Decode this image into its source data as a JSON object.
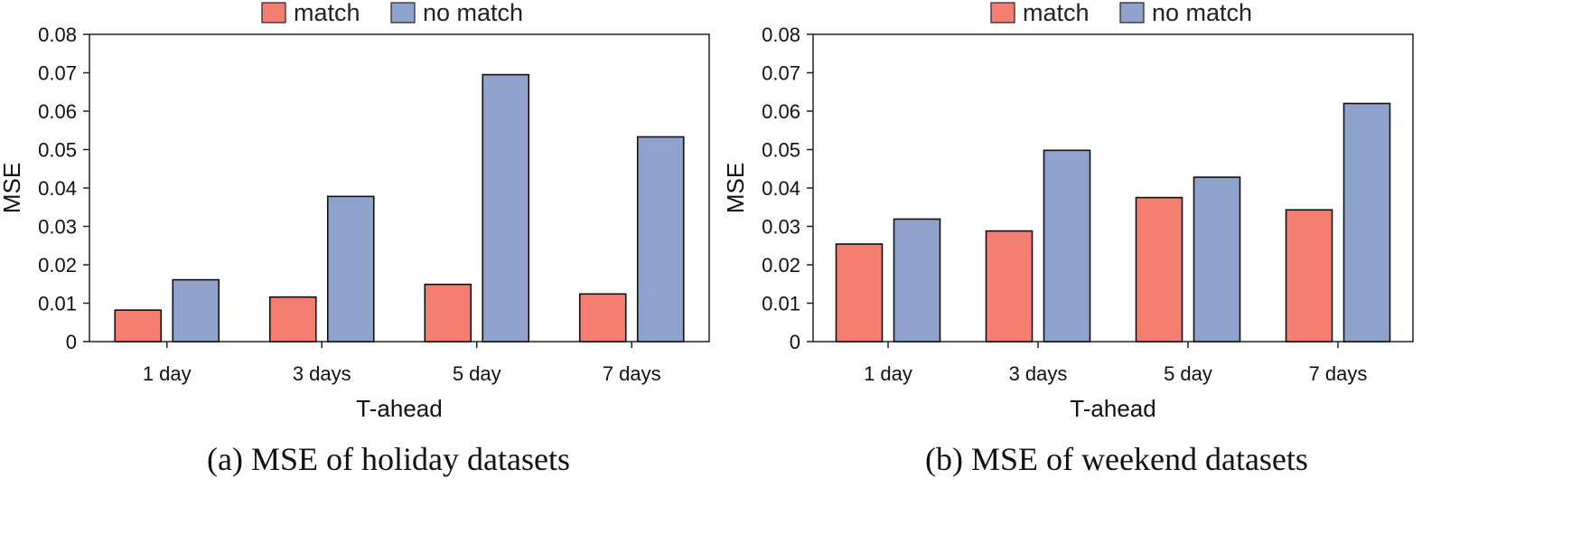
{
  "legend": {
    "items": [
      {
        "label": "match",
        "color": "#f47e71"
      },
      {
        "label": "no match",
        "color": "#8fa2cc"
      }
    ]
  },
  "chart_data": [
    {
      "type": "bar",
      "caption": "(a) MSE of holiday datasets",
      "categories": [
        "1 day",
        "3 days",
        "5 day",
        "7 days"
      ],
      "series": [
        {
          "name": "match",
          "values": [
            0.0082,
            0.0116,
            0.0149,
            0.0124
          ]
        },
        {
          "name": "no match",
          "values": [
            0.0161,
            0.0378,
            0.0695,
            0.0533
          ]
        }
      ],
      "xlabel": "T-ahead",
      "ylabel": "MSE",
      "ylim": [
        0,
        0.08
      ],
      "yticks": [
        "0",
        "0.01",
        "0.02",
        "0.03",
        "0.04",
        "0.05",
        "0.06",
        "0.07",
        "0.08"
      ],
      "legend_position": "top-center"
    },
    {
      "type": "bar",
      "caption": "(b) MSE of weekend datasets",
      "categories": [
        "1 day",
        "3 days",
        "5 day",
        "7 days"
      ],
      "series": [
        {
          "name": "match",
          "values": [
            0.0254,
            0.0288,
            0.0375,
            0.0343
          ]
        },
        {
          "name": "no match",
          "values": [
            0.0319,
            0.0498,
            0.0428,
            0.062
          ]
        }
      ],
      "xlabel": "T-ahead",
      "ylabel": "MSE",
      "ylim": [
        0,
        0.08
      ],
      "yticks": [
        "0",
        "0.01",
        "0.02",
        "0.03",
        "0.04",
        "0.05",
        "0.06",
        "0.07",
        "0.08"
      ],
      "legend_position": "top-center"
    }
  ]
}
